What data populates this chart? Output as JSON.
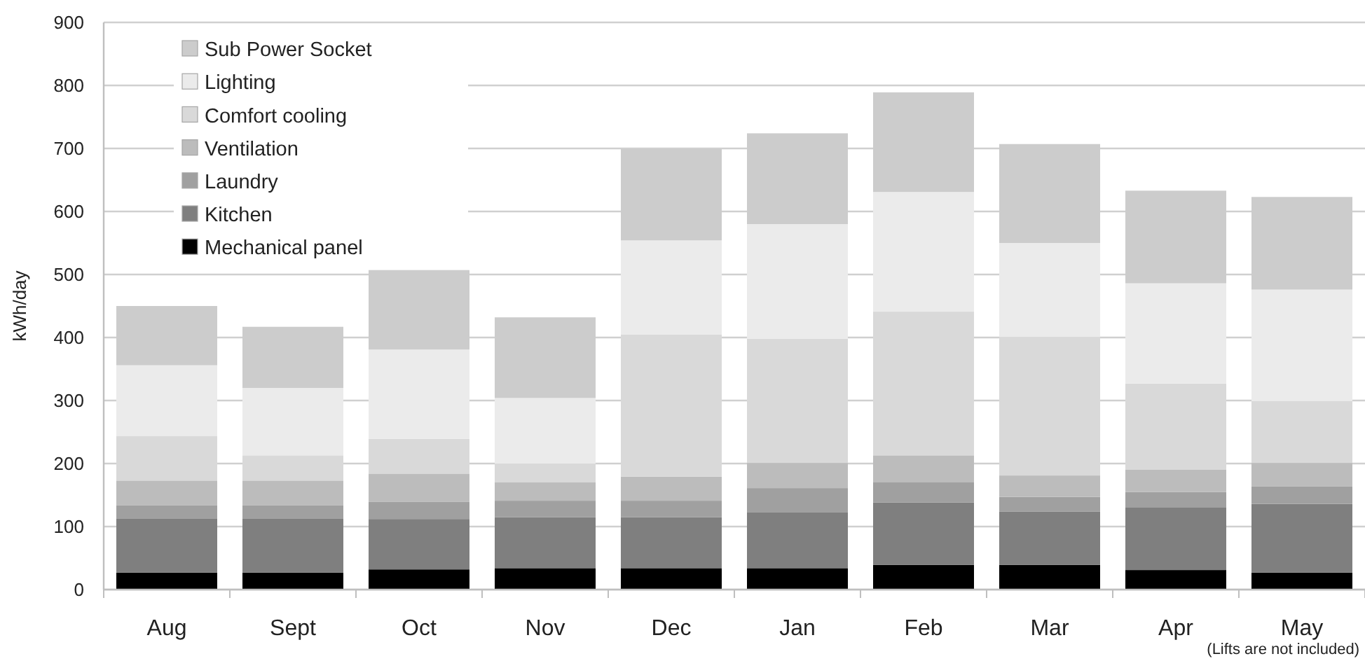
{
  "chart_data": {
    "type": "bar",
    "stacked": true,
    "ylabel": "kWh/day",
    "categories": [
      "Aug",
      "Sept",
      "Oct",
      "Nov",
      "Dec",
      "Jan",
      "Feb",
      "Mar",
      "Apr",
      "May"
    ],
    "series": [
      {
        "name": "Mechanical panel",
        "color": "#000000",
        "values": [
          27,
          27,
          32,
          34,
          34,
          34,
          39,
          39,
          31,
          27
        ]
      },
      {
        "name": "Kitchen",
        "color": "#7f7f7f",
        "values": [
          86,
          86,
          80,
          81,
          81,
          89,
          99,
          85,
          99,
          109
        ]
      },
      {
        "name": "Laundry",
        "color": "#a0a0a0",
        "values": [
          21,
          21,
          27,
          26,
          26,
          38,
          32,
          23,
          25,
          28
        ]
      },
      {
        "name": "Ventilation",
        "color": "#bcbcbc",
        "values": [
          39,
          39,
          45,
          29,
          38,
          40,
          43,
          34,
          35,
          37
        ]
      },
      {
        "name": "Comfort cooling",
        "color": "#d9d9d9",
        "values": [
          71,
          40,
          55,
          30,
          226,
          197,
          228,
          220,
          137,
          98
        ]
      },
      {
        "name": "Lighting",
        "color": "#ebebeb",
        "values": [
          112,
          107,
          142,
          104,
          149,
          182,
          190,
          149,
          159,
          177
        ]
      },
      {
        "name": "Sub Power Socket",
        "color": "#cccccc",
        "values": [
          94,
          97,
          126,
          128,
          145,
          144,
          158,
          157,
          147,
          147
        ]
      }
    ],
    "ylim": [
      0,
      900
    ],
    "yticks": [
      0,
      100,
      200,
      300,
      400,
      500,
      600,
      700,
      800,
      900
    ],
    "grid": "y",
    "legend": "top left",
    "annotations": [
      "(Lifts are not included)"
    ]
  }
}
